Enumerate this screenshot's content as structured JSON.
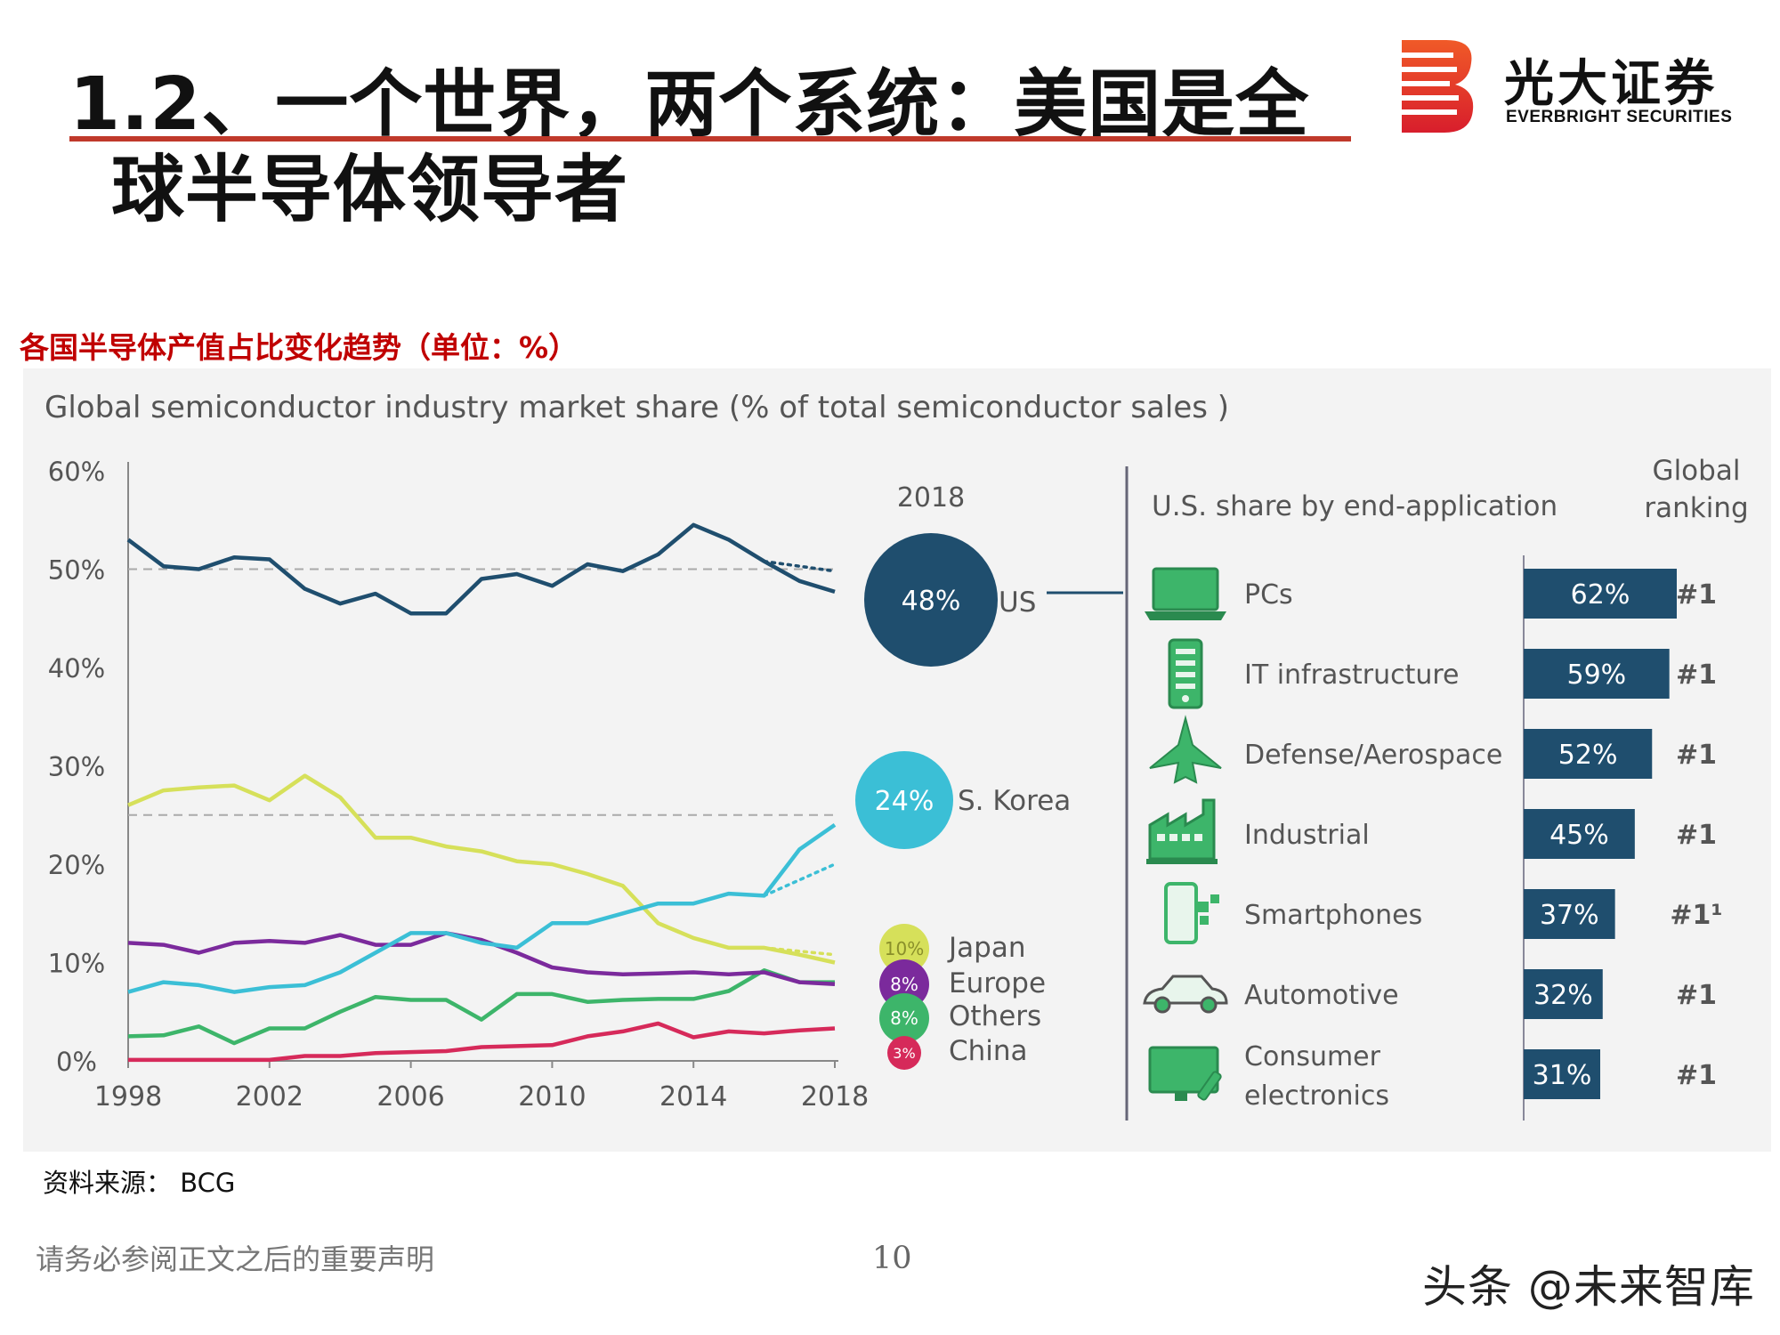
{
  "header": {
    "title_line1": "1.2、一个世界，两个系统：美国是全",
    "title_line2": "球半导体领导者",
    "accent_color": "#c0392b"
  },
  "logo": {
    "name_cn": "光大证券",
    "name_en": "EVERBRIGHT SECURITIES",
    "brand_color": "#e8382f"
  },
  "chart_caption": "各国半导体产值占比变化趋势（单位：%）",
  "chart_data": [
    {
      "type": "line",
      "title": "Global semiconductor industry market share (% of total semiconductor sales )",
      "xlabel": "",
      "ylabel": "",
      "x": [
        1998,
        1999,
        2000,
        2001,
        2002,
        2003,
        2004,
        2005,
        2006,
        2007,
        2008,
        2009,
        2010,
        2011,
        2012,
        2013,
        2014,
        2015,
        2016,
        2017,
        2018
      ],
      "x_ticks": [
        "1998",
        "2002",
        "2006",
        "2010",
        "2014",
        "2018"
      ],
      "y_ticks": [
        "0%",
        "10%",
        "20%",
        "30%",
        "40%",
        "50%",
        "60%"
      ],
      "ylim": [
        0,
        60
      ],
      "reference_lines": [
        50,
        25
      ],
      "grid": false,
      "series": [
        {
          "name": "US",
          "color": "#1f4e6e",
          "values": [
            53,
            50.3,
            50,
            51.2,
            51,
            48,
            46.5,
            47.5,
            45.5,
            45.5,
            49,
            49.5,
            48.3,
            50.5,
            49.8,
            51.5,
            54.5,
            53,
            50.8,
            48.8,
            47.7
          ]
        },
        {
          "name": "S. Korea",
          "color": "#3bbfd6",
          "values": [
            7,
            8,
            7.7,
            7,
            7.5,
            7.7,
            9,
            11,
            13,
            13,
            12,
            11.5,
            14,
            14,
            15,
            16,
            16,
            17,
            16.8,
            21.5,
            24
          ]
        },
        {
          "name": "Japan",
          "color": "#d6e05a",
          "values": [
            26,
            27.5,
            27.8,
            28,
            26.5,
            29,
            26.8,
            22.7,
            22.7,
            21.8,
            21.3,
            20.3,
            20,
            19,
            17.8,
            14,
            12.5,
            11.5,
            11.5,
            10.8,
            10
          ]
        },
        {
          "name": "Europe",
          "color": "#7b2a9c",
          "values": [
            12,
            11.8,
            11,
            12,
            12.2,
            12,
            12.8,
            11.8,
            11.8,
            13,
            12.3,
            11,
            9.5,
            9,
            8.8,
            8.9,
            9,
            8.8,
            9,
            8,
            7.8
          ]
        },
        {
          "name": "Others",
          "color": "#3db56a",
          "values": [
            2.5,
            2.6,
            3.5,
            1.8,
            3.3,
            3.3,
            5,
            6.5,
            6.2,
            6.2,
            4.2,
            6.8,
            6.8,
            6,
            6.2,
            6.3,
            6.3,
            7.1,
            9.2,
            8,
            8
          ]
        },
        {
          "name": "China",
          "color": "#d62a5a",
          "values": [
            0.1,
            0.1,
            0.1,
            0.1,
            0.1,
            0.5,
            0.5,
            0.8,
            0.9,
            1,
            1.4,
            1.5,
            1.6,
            2.5,
            3,
            3.8,
            2.4,
            3,
            2.8,
            3.1,
            3.3
          ]
        }
      ],
      "projections": [
        {
          "series": "US",
          "x": [
            2016,
            2018
          ],
          "values": [
            50.8,
            49.8
          ]
        },
        {
          "series": "S. Korea",
          "x": [
            2016,
            2018
          ],
          "values": [
            16.8,
            20
          ]
        },
        {
          "series": "Japan",
          "x": [
            2016,
            2018
          ],
          "values": [
            11.5,
            10.8
          ]
        }
      ],
      "bubbles": {
        "year_label": "2018",
        "items": [
          {
            "name": "US",
            "value": 48,
            "label": "48%",
            "color": "#1f4e6e"
          },
          {
            "name": "S. Korea",
            "value": 24,
            "label": "24%",
            "color": "#3bbfd6"
          },
          {
            "name": "Japan",
            "value": 10,
            "label": "10%",
            "color": "#d6e05a"
          },
          {
            "name": "Europe",
            "value": 8,
            "label": "8%",
            "color": "#7b2a9c"
          },
          {
            "name": "Others",
            "value": 8,
            "label": "8%",
            "color": "#3db56a"
          },
          {
            "name": "China",
            "value": 3,
            "label": "3%",
            "color": "#d62a5a"
          }
        ]
      }
    },
    {
      "type": "bar",
      "title": "U.S. share by end-application",
      "ranking_header": [
        "Global",
        "ranking"
      ],
      "bar_color": "#1f4e6e",
      "categories": [
        "PCs",
        "IT infrastructure",
        "Defense/Aerospace",
        "Industrial",
        "Smartphones",
        "Automotive",
        "Consumer electronics"
      ],
      "category_lines": [
        [
          "PCs"
        ],
        [
          "IT infrastructure"
        ],
        [
          "Defense/Aerospace"
        ],
        [
          "Industrial"
        ],
        [
          "Smartphones"
        ],
        [
          "Automotive"
        ],
        [
          "Consumer",
          "electronics"
        ]
      ],
      "icons": [
        "laptop-icon",
        "server-icon",
        "jet-icon",
        "factory-icon",
        "smartphone-icon",
        "car-icon",
        "tv-icon"
      ],
      "values": [
        62,
        59,
        52,
        45,
        37,
        32,
        31
      ],
      "value_labels": [
        "62%",
        "59%",
        "52%",
        "45%",
        "37%",
        "32%",
        "31%"
      ],
      "rankings": [
        "#1",
        "#1",
        "#1",
        "#1",
        "#1¹",
        "#1",
        "#1"
      ]
    }
  ],
  "footer": {
    "source": "资料来源： BCG",
    "disclaimer": "请务必参阅正文之后的重要声明",
    "page_number": "10",
    "watermark": "头条 @未来智库"
  }
}
